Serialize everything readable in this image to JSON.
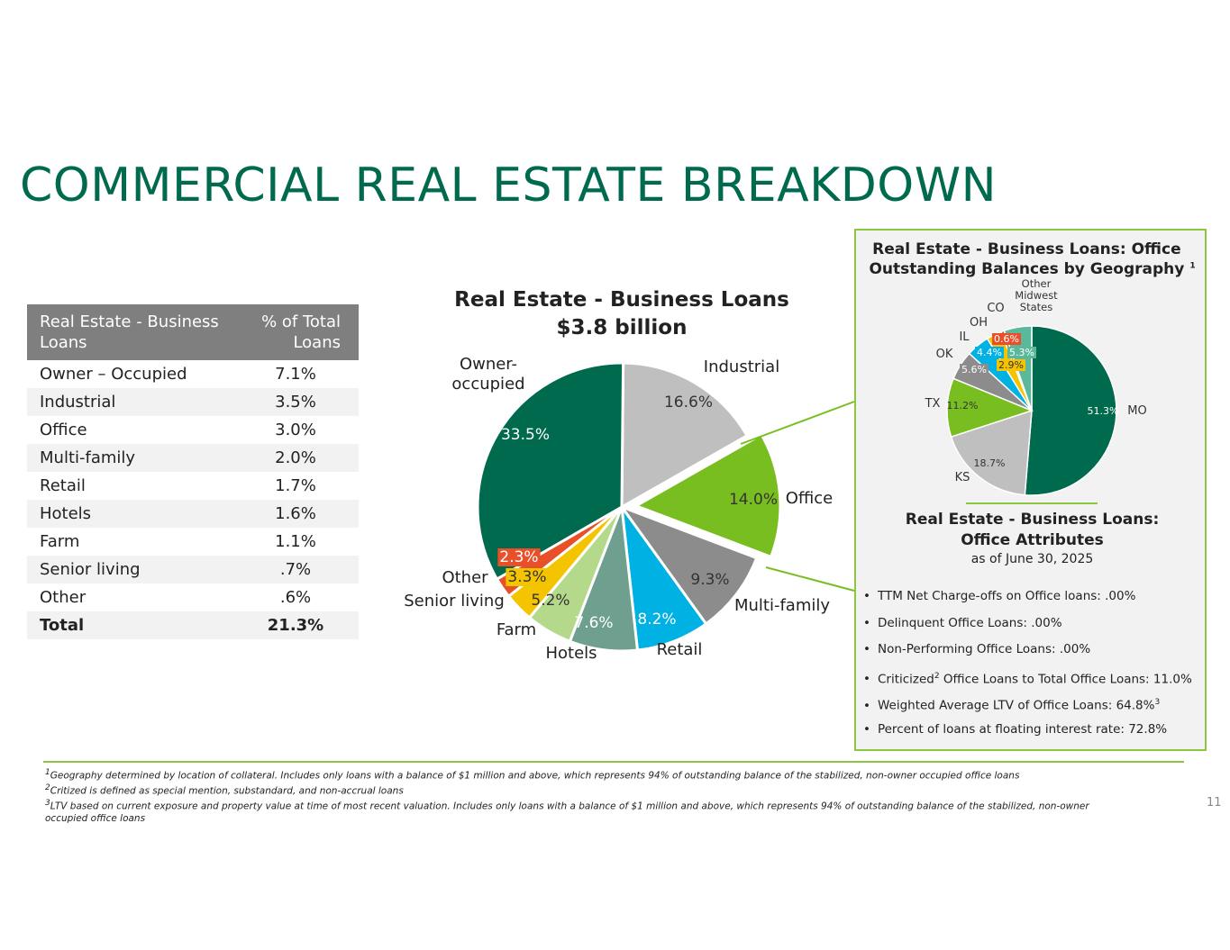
{
  "title": "COMMERCIAL REAL ESTATE BREAKDOWN",
  "table": {
    "col1": "Real Estate - Business Loans",
    "col2": "% of Total Loans",
    "rows": [
      {
        "label": "Owner – Occupied",
        "value": "7.1%"
      },
      {
        "label": "Industrial",
        "value": "3.5%"
      },
      {
        "label": "Office",
        "value": "3.0%"
      },
      {
        "label": "Multi-family",
        "value": "2.0%"
      },
      {
        "label": "Retail",
        "value": "1.7%"
      },
      {
        "label": "Hotels",
        "value": "1.6%"
      },
      {
        "label": "Farm",
        "value": "1.1%"
      },
      {
        "label": "Senior living",
        "value": ".7%"
      },
      {
        "label": "Other",
        "value": ".6%"
      }
    ],
    "total_label": "Total",
    "total_value": "21.3%"
  },
  "chart_data": [
    {
      "type": "pie",
      "title": "Real Estate - Business Loans",
      "subtitle": "$3.8 billion",
      "slices": [
        {
          "name": "Industrial",
          "value": 16.6,
          "label": "16.6%",
          "color": "#bfbfbf"
        },
        {
          "name": "Office",
          "value": 14.0,
          "label": "14.0%",
          "color": "#78be20",
          "exploded": true
        },
        {
          "name": "Multi-family",
          "value": 9.3,
          "label": "9.3%",
          "color": "#8c8c8c"
        },
        {
          "name": "Retail",
          "value": 8.2,
          "label": "8.2%",
          "color": "#00b2e3"
        },
        {
          "name": "Hotels",
          "value": 7.6,
          "label": "7.6%",
          "color": "#6fa08f"
        },
        {
          "name": "Farm",
          "value": 5.2,
          "label": "5.2%",
          "color": "#b5d98a"
        },
        {
          "name": "Senior living",
          "value": 3.3,
          "label": "3.3%",
          "color": "#f5c400"
        },
        {
          "name": "Other",
          "value": 2.3,
          "label": "2.3%",
          "color": "#e8502a"
        },
        {
          "name": "Owner-occupied",
          "value": 33.5,
          "label": "33.5%",
          "color": "#006a4e"
        }
      ]
    },
    {
      "type": "pie",
      "title": "Real Estate - Business Loans: Office Outstanding Balances by Geography",
      "title_sup": "1",
      "slices": [
        {
          "name": "MO",
          "value": 51.3,
          "label": "51.3%",
          "color": "#006a4e"
        },
        {
          "name": "KS",
          "value": 18.7,
          "label": "18.7%",
          "color": "#bfbfbf"
        },
        {
          "name": "TX",
          "value": 11.2,
          "label": "11.2%",
          "color": "#78be20"
        },
        {
          "name": "OK",
          "value": 5.6,
          "label": "5.6%",
          "color": "#8c8c8c"
        },
        {
          "name": "IL",
          "value": 4.4,
          "label": "4.4%",
          "color": "#00b2e3"
        },
        {
          "name": "OH",
          "value": 2.9,
          "label": "2.9%",
          "color": "#f5c400"
        },
        {
          "name": "CO",
          "value": 0.6,
          "label": "0.6%",
          "color": "#e8502a"
        },
        {
          "name": "Other Midwest States",
          "value": 5.3,
          "label": "5.3%",
          "color": "#5bb89a"
        }
      ]
    }
  ],
  "panel": {
    "subtitle1": "Real Estate - Business Loans:",
    "subtitle2": "Office Attributes",
    "date": "as of June 30, 2025",
    "bullets": [
      {
        "text": "TTM Net Charge-offs on Office loans: .00%"
      },
      {
        "text": "Delinquent Office Loans: .00%"
      },
      {
        "text": "Non-Performing Office Loans: .00%"
      },
      {
        "pre": "Criticized",
        "sup": "2",
        "post": " Office Loans to Total Office Loans: 11.0%"
      },
      {
        "pre": "Weighted Average LTV of Office Loans: 64.8%",
        "sup": "3",
        "post": ""
      },
      {
        "text": "Percent of loans at floating interest rate: 72.8%"
      }
    ]
  },
  "footnotes": [
    {
      "sup": "1",
      "text": "Geography determined by location of collateral. Includes only loans with a balance of $1 million and above, which represents 94% of outstanding balance of the stabilized, non-owner occupied office loans"
    },
    {
      "sup": "2",
      "text": "Critized is defined as special mention, substandard, and non-accrual loans"
    },
    {
      "sup": "3",
      "text": "LTV based on current exposure and property value at time of most recent valuation.  Includes only loans with a balance of $1 million and above, which represents 94% of outstanding balance of the stabilized, non-owner occupied office loans"
    }
  ],
  "page_number": "11"
}
